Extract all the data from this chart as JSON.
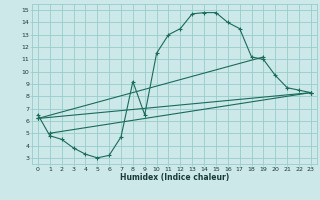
{
  "xlabel": "Humidex (Indice chaleur)",
  "bg_color": "#cce8e8",
  "grid_color": "#99cccc",
  "line_color": "#1a6b5a",
  "xlim": [
    -0.5,
    23.5
  ],
  "ylim": [
    2.5,
    15.5
  ],
  "xticks": [
    0,
    1,
    2,
    3,
    4,
    5,
    6,
    7,
    8,
    9,
    10,
    11,
    12,
    13,
    14,
    15,
    16,
    17,
    18,
    19,
    20,
    21,
    22,
    23
  ],
  "yticks": [
    3,
    4,
    5,
    6,
    7,
    8,
    9,
    10,
    11,
    12,
    13,
    14,
    15
  ],
  "line1_x": [
    0,
    1,
    2,
    3,
    4,
    5,
    6,
    7,
    8,
    9,
    10,
    11,
    12,
    13,
    14,
    15,
    16,
    17,
    18,
    19,
    20,
    21,
    22,
    23
  ],
  "line1_y": [
    6.5,
    4.8,
    4.5,
    3.8,
    3.3,
    3.0,
    3.2,
    4.7,
    9.2,
    6.5,
    11.5,
    13.0,
    13.5,
    14.7,
    14.8,
    14.8,
    14.0,
    13.5,
    11.2,
    11.0,
    9.7,
    8.7,
    8.5,
    8.3
  ],
  "line2_x": [
    1,
    23
  ],
  "line2_y": [
    5.0,
    8.3
  ],
  "line3_x": [
    0,
    23
  ],
  "line3_y": [
    6.2,
    8.3
  ],
  "line4_x": [
    0,
    19
  ],
  "line4_y": [
    6.2,
    11.2
  ]
}
